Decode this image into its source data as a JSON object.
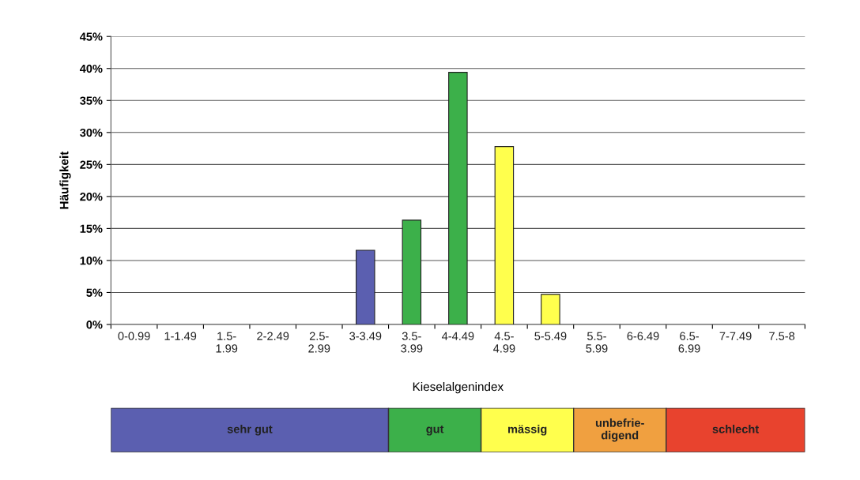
{
  "chart_data": [
    {
      "type": "bar",
      "xlabel": "Kieselalgenindex",
      "ylabel": "Häufigkeit",
      "categories": [
        "0-0.99",
        "1-1.49",
        "1.5-\n1.99",
        "2-2.49",
        "2.5-\n2.99",
        "3-3.49",
        "3.5-\n3.99",
        "4-4.49",
        "4.5-\n4.99",
        "5-5.49",
        "5.5-\n5.99",
        "6-6.49",
        "6.5-\n6.99",
        "7-7.49",
        "7.5-8"
      ],
      "values": [
        0,
        0,
        0,
        0,
        0,
        11.6,
        16.3,
        39.4,
        27.8,
        4.7,
        0,
        0,
        0,
        0,
        0
      ],
      "colors": [
        "#5b5fb0",
        "#5b5fb0",
        "#5b5fb0",
        "#5b5fb0",
        "#5b5fb0",
        "#5b5fb0",
        "#3cb04a",
        "#3cb04a",
        "#ffff4d",
        "#ffff4d",
        "#f0a040",
        "#f0a040",
        "#e8432e",
        "#e8432e",
        "#e8432e"
      ],
      "ylim": [
        0,
        45
      ],
      "yticks": [
        {
          "value": 0,
          "label": "0%"
        },
        {
          "value": 5,
          "label": "5%"
        },
        {
          "value": 10,
          "label": "10%"
        },
        {
          "value": 15,
          "label": "15%"
        },
        {
          "value": 20,
          "label": "20%"
        },
        {
          "value": 25,
          "label": "25%"
        },
        {
          "value": 30,
          "label": "30%"
        },
        {
          "value": 35,
          "label": "35%"
        },
        {
          "value": 40,
          "label": "40%"
        },
        {
          "value": 45,
          "label": "45%"
        }
      ],
      "grid": "y"
    },
    {
      "type": "other",
      "categories": [
        "sehr gut",
        "gut",
        "mässig",
        "unbefrie-\ndigend",
        "schlecht"
      ],
      "colors": [
        "#5b5fb0",
        "#3cb04a",
        "#ffff4d",
        "#f0a040",
        "#e8432e"
      ]
    }
  ]
}
